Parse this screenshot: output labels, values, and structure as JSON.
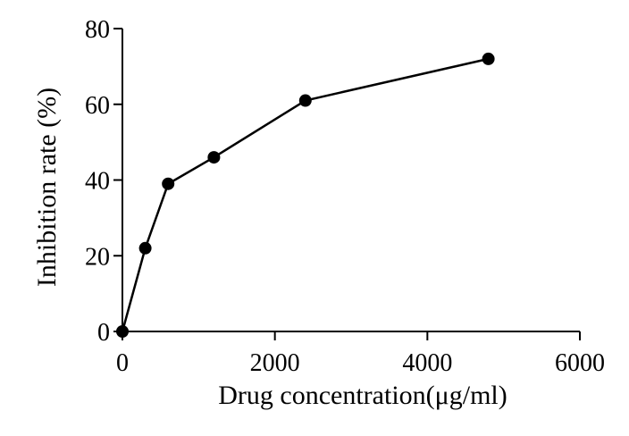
{
  "chart_data": {
    "type": "line",
    "title": "",
    "xlabel": "Drug concentration(μg/ml)",
    "ylabel": "Inhibition rate (%)",
    "xlim": [
      0,
      6000
    ],
    "ylim": [
      0,
      80
    ],
    "xticks": [
      0,
      2000,
      4000,
      6000
    ],
    "yticks": [
      0,
      20,
      40,
      60,
      80
    ],
    "xtick_labels": [
      "0",
      "2000",
      "4000",
      "6000"
    ],
    "ytick_labels": [
      "0",
      "20",
      "40",
      "60",
      "80"
    ],
    "grid": false,
    "legend": "none",
    "series": [
      {
        "x": [
          0,
          300,
          600,
          1200,
          2400,
          4800
        ],
        "y": [
          0,
          22,
          39,
          46,
          61,
          72
        ],
        "color": "#000000",
        "marker": "circle"
      }
    ]
  }
}
